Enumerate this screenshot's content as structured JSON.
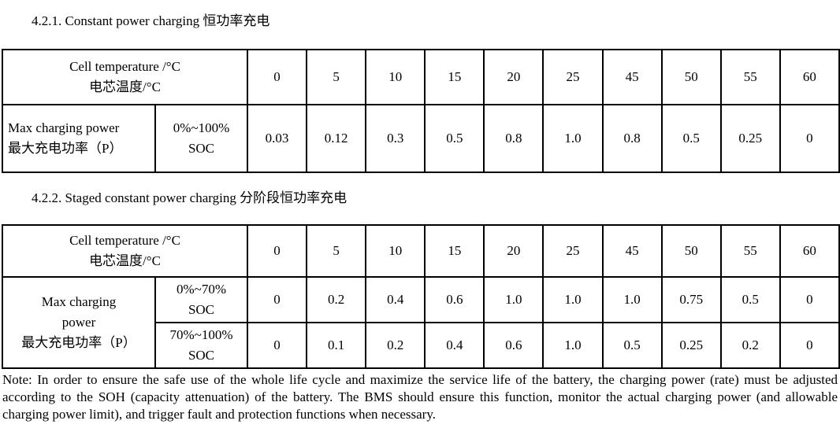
{
  "page": {
    "background": "#ffffff",
    "text_color": "#000000"
  },
  "section1": {
    "heading": "4.2.1. Constant power charging 恒功率充电",
    "table": {
      "header_en": "Cell temperature /°C",
      "header_zh": "电芯温度/°C",
      "temps": [
        "0",
        "5",
        "10",
        "15",
        "20",
        "25",
        "45",
        "50",
        "55",
        "60"
      ],
      "row_label_en": "Max charging power",
      "row_label_zh": "最大充电功率（P）",
      "soc_range": "0%~100%",
      "soc_unit": "SOC",
      "values": [
        "0.03",
        "0.12",
        "0.3",
        "0.5",
        "0.8",
        "1.0",
        "0.8",
        "0.5",
        "0.25",
        "0"
      ]
    }
  },
  "section2": {
    "heading": "4.2.2. Staged constant power charging 分阶段恒功率充电",
    "table": {
      "header_en": "Cell temperature /°C",
      "header_zh": "电芯温度/°C",
      "temps": [
        "0",
        "5",
        "10",
        "15",
        "20",
        "25",
        "45",
        "50",
        "55",
        "60"
      ],
      "row_label_en_line1": "Max charging",
      "row_label_en_line2": "power",
      "row_label_zh": "最大充电功率（P）",
      "rows": [
        {
          "soc_range": "0%~70%",
          "soc_unit": "SOC",
          "values": [
            "0",
            "0.2",
            "0.4",
            "0.6",
            "1.0",
            "1.0",
            "1.0",
            "0.75",
            "0.5",
            "0"
          ]
        },
        {
          "soc_range": "70%~100%",
          "soc_unit": "SOC",
          "values": [
            "0",
            "0.1",
            "0.2",
            "0.4",
            "0.6",
            "1.0",
            "0.5",
            "0.25",
            "0.2",
            "0"
          ]
        }
      ]
    }
  },
  "note": "Note: In order to ensure the safe use of the whole life cycle and maximize the service life of the battery, the charging power (rate) must be adjusted according to the SOH (capacity attenuation) of the battery. The BMS should ensure this function, monitor the actual charging power (and allowable charging power limit), and trigger fault and protection functions when necessary."
}
